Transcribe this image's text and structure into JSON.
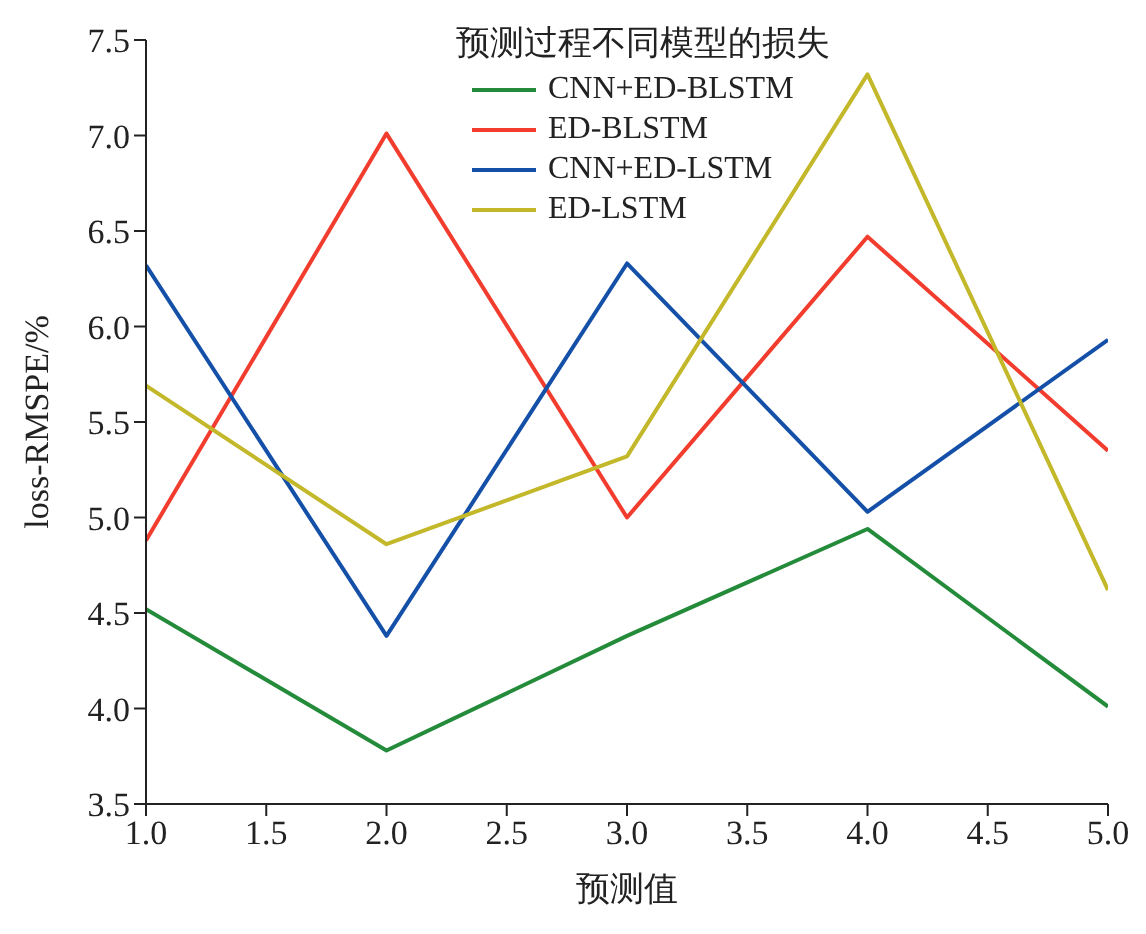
{
  "chart_data": {
    "type": "line",
    "legend_title": "预测过程不同模型的损失",
    "xlabel": "预测值",
    "ylabel": "loss-RMSPE/%",
    "x": [
      1,
      2,
      3,
      4,
      5
    ],
    "xlim": [
      1,
      5
    ],
    "xticks": [
      {
        "value": 1,
        "label": "1.0"
      },
      {
        "value": 1.5,
        "label": "1.5"
      },
      {
        "value": 2,
        "label": "2.0"
      },
      {
        "value": 2.5,
        "label": "2.5"
      },
      {
        "value": 3,
        "label": "3.0"
      },
      {
        "value": 3.5,
        "label": "3.5"
      },
      {
        "value": 4,
        "label": "4.0"
      },
      {
        "value": 4.5,
        "label": "4.5"
      },
      {
        "value": 5,
        "label": "5.0"
      }
    ],
    "ylim": [
      3.5,
      7.5
    ],
    "yticks": [
      3.5,
      {
        "value": 4,
        "label": "4.0"
      },
      4.5,
      {
        "value": 5,
        "label": "5.0"
      },
      5.5,
      {
        "value": 6,
        "label": "6.0"
      },
      6.5,
      {
        "value": 7,
        "label": "7.0"
      },
      7.5
    ],
    "grid": false,
    "legend": "top",
    "marker": "none",
    "line_style": "solid",
    "series": [
      {
        "name": "CNN+ED-BLSTM",
        "color": "#238b3a",
        "values": [
          4.52,
          3.78,
          4.38,
          4.94,
          4.01
        ]
      },
      {
        "name": "ED-BLSTM",
        "color": "#f23d2e",
        "values": [
          4.88,
          7.01,
          5.0,
          6.47,
          5.35
        ]
      },
      {
        "name": "CNN+ED-LSTM",
        "color": "#1450a8",
        "values": [
          6.32,
          4.38,
          6.33,
          5.03,
          5.93
        ]
      },
      {
        "name": "ED-LSTM",
        "color": "#c3b72a",
        "values": [
          5.69,
          4.86,
          5.32,
          7.32,
          4.62
        ]
      }
    ]
  }
}
